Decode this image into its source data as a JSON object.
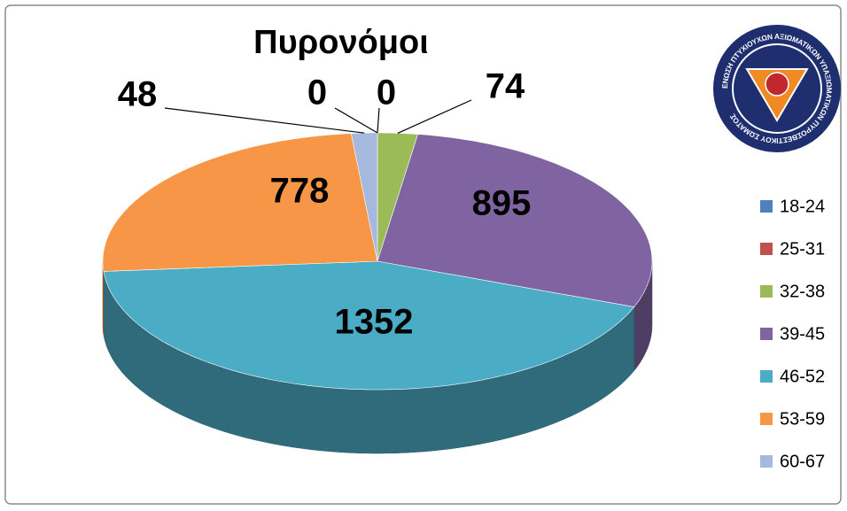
{
  "chart_data": {
    "type": "pie3d",
    "title": "Πυρονόμοι",
    "categories": [
      "18-24",
      "25-31",
      "32-38",
      "39-45",
      "46-52",
      "53-59",
      "60-67"
    ],
    "values": [
      0,
      0,
      74,
      895,
      1352,
      778,
      48
    ],
    "colors": [
      "#4f81bd",
      "#c0504d",
      "#9bbb59",
      "#8064a2",
      "#4bacc6",
      "#f79646",
      "#a5b8dd"
    ],
    "legend": "right"
  },
  "logo": {
    "text": "ΕΝΩΣΗ ΠΤΥΧΙΟΥΧΩΝ ΑΞΙΩΜΑΤΙΚΩΝ ΥΠΑΞΙΩΜΑΤΙΚΩΝ ΠΥΡΟΣΒΕΣΤΙΚΟΥ ΣΩΜΑΤΟΣ"
  }
}
